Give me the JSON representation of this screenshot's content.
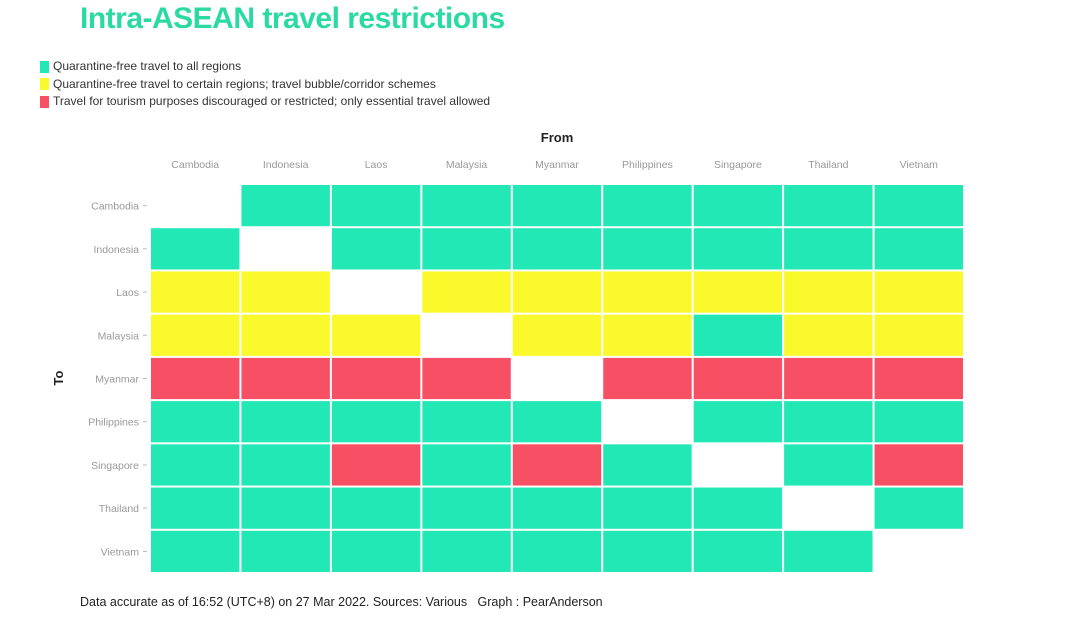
{
  "chart_data": {
    "type": "heatmap",
    "title": "Intra-ASEAN travel restrictions",
    "xlabel": "From",
    "ylabel": "To",
    "x_categories": [
      "Cambodia",
      "Indonesia",
      "Laos",
      "Malaysia",
      "Myanmar",
      "Philippines",
      "Singapore",
      "Thailand",
      "Vietnam"
    ],
    "y_categories": [
      "Cambodia",
      "Indonesia",
      "Laos",
      "Malaysia",
      "Myanmar",
      "Philippines",
      "Singapore",
      "Thailand",
      "Vietnam"
    ],
    "legend": [
      {
        "key": "G",
        "label": "Quarantine-free travel to all regions",
        "color": "#22e8b5"
      },
      {
        "key": "Y",
        "label": "Quarantine-free travel to certain regions; travel bubble/corridor schemes",
        "color": "#f9f92c"
      },
      {
        "key": "R",
        "label": "Travel for tourism purposes discouraged or restricted; only essential travel allowed",
        "color": "#f74f64"
      }
    ],
    "values": [
      [
        "",
        "G",
        "G",
        "G",
        "G",
        "G",
        "G",
        "G",
        "G"
      ],
      [
        "G",
        "",
        "G",
        "G",
        "G",
        "G",
        "G",
        "G",
        "G"
      ],
      [
        "Y",
        "Y",
        "",
        "Y",
        "Y",
        "Y",
        "Y",
        "Y",
        "Y"
      ],
      [
        "Y",
        "Y",
        "Y",
        "",
        "Y",
        "Y",
        "G",
        "Y",
        "Y"
      ],
      [
        "R",
        "R",
        "R",
        "R",
        "",
        "R",
        "R",
        "R",
        "R"
      ],
      [
        "G",
        "G",
        "G",
        "G",
        "G",
        "",
        "G",
        "G",
        "G"
      ],
      [
        "G",
        "G",
        "R",
        "G",
        "R",
        "G",
        "",
        "G",
        "R"
      ],
      [
        "G",
        "G",
        "G",
        "G",
        "G",
        "G",
        "G",
        "",
        "G"
      ],
      [
        "G",
        "G",
        "G",
        "G",
        "G",
        "G",
        "G",
        "G",
        ""
      ]
    ]
  },
  "footer": "Data accurate as of 16:52 (UTC+8) on 27 Mar 2022. Sources: Various   Graph : PearAnderson"
}
